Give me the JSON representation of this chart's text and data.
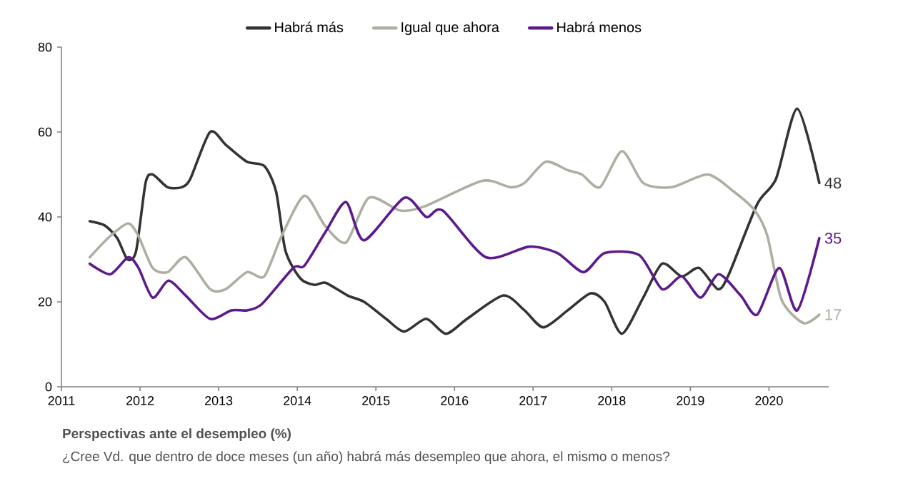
{
  "chart_data": {
    "type": "line",
    "title": "Perspectivas ante el desempleo (%)",
    "subtitle": "¿Cree Vd. que dentro de doce meses (un año) habrá más desempleo que ahora, el mismo o menos?",
    "xlim": [
      2011,
      2020.76
    ],
    "xticks": [
      2011,
      2012,
      2013,
      2014,
      2015,
      2016,
      2017,
      2018,
      2019,
      2020
    ],
    "ylim": [
      0,
      80
    ],
    "yticks": [
      0,
      20,
      40,
      60,
      80
    ],
    "grid": false,
    "legend": "top",
    "series": [
      {
        "name": "Habrá más",
        "color": "#333333",
        "x": [
          2011.36,
          2011.55,
          2011.71,
          2011.84,
          2011.95,
          2012.07,
          2012.16,
          2012.35,
          2012.53,
          2012.64,
          2012.89,
          2013.09,
          2013.36,
          2013.58,
          2013.73,
          2013.85,
          2014.04,
          2014.22,
          2014.36,
          2014.64,
          2014.85,
          2015.13,
          2015.36,
          2015.64,
          2015.89,
          2016.16,
          2016.62,
          2016.89,
          2017.13,
          2017.44,
          2017.73,
          2017.91,
          2018.13,
          2018.4,
          2018.64,
          2018.89,
          2019.11,
          2019.35,
          2019.49,
          2019.85,
          2020.09,
          2020.36,
          2020.64
        ],
        "values": [
          39,
          38,
          35,
          30,
          32,
          48,
          50,
          47,
          47,
          49,
          60,
          57,
          53,
          52,
          46,
          32,
          25.5,
          24,
          24.5,
          21.5,
          20,
          16,
          13,
          16,
          12.5,
          16,
          21.5,
          18,
          14,
          18,
          22,
          20,
          12.5,
          21,
          29,
          26,
          28,
          23,
          26.5,
          43,
          49,
          65.5,
          48
        ],
        "value_labels": [
          null,
          null,
          null,
          null,
          null,
          null,
          null,
          null,
          null,
          null,
          null,
          null,
          null,
          null,
          null,
          null,
          null,
          null,
          null,
          null,
          null,
          null,
          null,
          null,
          null,
          null,
          null,
          null,
          null,
          null,
          null,
          null,
          null,
          null,
          null,
          null,
          null,
          null,
          null,
          null,
          null,
          null,
          "48"
        ]
      },
      {
        "name": "Igual que ahora",
        "color": "#aeaea2",
        "x": [
          2011.36,
          2011.62,
          2011.85,
          2011.98,
          2012.16,
          2012.35,
          2012.58,
          2012.89,
          2013.09,
          2013.36,
          2013.58,
          2013.8,
          2014.09,
          2014.35,
          2014.62,
          2014.91,
          2015.31,
          2015.62,
          2016.35,
          2016.71,
          2016.89,
          2017.16,
          2017.44,
          2017.62,
          2017.85,
          2018.13,
          2018.4,
          2018.76,
          2019.22,
          2019.55,
          2019.82,
          2019.98,
          2020.16,
          2020.44,
          2020.64
        ],
        "values": [
          30.5,
          35.5,
          38.5,
          35.5,
          28,
          27,
          30.5,
          23,
          23,
          27,
          26,
          35.5,
          45,
          38,
          34,
          44.5,
          41.5,
          42.5,
          48.5,
          47,
          48,
          53,
          51,
          50,
          47,
          55.5,
          48,
          47,
          50,
          46,
          41.5,
          35.5,
          20.5,
          15,
          17
        ],
        "value_labels": [
          null,
          null,
          null,
          null,
          null,
          null,
          null,
          null,
          null,
          null,
          null,
          null,
          null,
          null,
          null,
          null,
          null,
          null,
          null,
          null,
          null,
          null,
          null,
          null,
          null,
          null,
          null,
          null,
          null,
          null,
          null,
          null,
          null,
          null,
          "17"
        ]
      },
      {
        "name": "Habrá menos",
        "color": "#5c1a8c",
        "x": [
          2011.36,
          2011.62,
          2011.85,
          2011.98,
          2012.16,
          2012.36,
          2012.58,
          2012.89,
          2013.16,
          2013.36,
          2013.55,
          2013.95,
          2014.09,
          2014.36,
          2014.62,
          2014.85,
          2015.36,
          2015.64,
          2015.85,
          2016.4,
          2016.95,
          2017.31,
          2017.64,
          2017.91,
          2018.35,
          2018.64,
          2018.89,
          2019.13,
          2019.36,
          2019.64,
          2019.85,
          2020.13,
          2020.36,
          2020.64
        ],
        "values": [
          29,
          26.5,
          30.5,
          28,
          21,
          25,
          21.5,
          16,
          18,
          18,
          19.5,
          28,
          28.5,
          36.5,
          43.5,
          34.5,
          44.5,
          40,
          41.5,
          30.5,
          33,
          31.5,
          27,
          31.5,
          31,
          23,
          26,
          21,
          26.5,
          21.5,
          17,
          28,
          18,
          35
        ],
        "value_labels": [
          null,
          null,
          null,
          null,
          null,
          null,
          null,
          null,
          null,
          null,
          null,
          null,
          null,
          null,
          null,
          null,
          null,
          null,
          null,
          null,
          null,
          null,
          null,
          null,
          null,
          null,
          null,
          null,
          null,
          null,
          null,
          null,
          null,
          "35"
        ]
      }
    ]
  }
}
